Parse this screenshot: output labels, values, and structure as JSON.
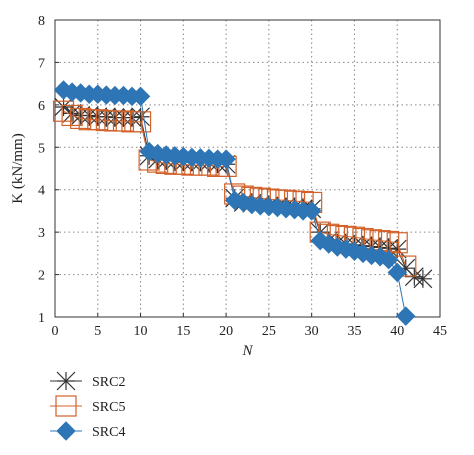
{
  "chart_data": {
    "type": "scatter",
    "xlabel": "N",
    "ylabel": "K (kN/mm)",
    "xlim": [
      0,
      45
    ],
    "ylim": [
      1,
      8
    ],
    "xticks": [
      0,
      5,
      10,
      15,
      20,
      25,
      30,
      35,
      40,
      45
    ],
    "yticks": [
      1,
      2,
      3,
      4,
      5,
      6,
      7,
      8
    ],
    "grid": true,
    "legend_position": "bottom-left",
    "series": [
      {
        "name": "SRC2",
        "marker": "asterisk",
        "color": "#333333",
        "x": [
          1,
          2,
          3,
          4,
          5,
          6,
          7,
          8,
          9,
          10,
          11,
          12,
          13,
          14,
          15,
          16,
          17,
          18,
          19,
          20,
          21,
          22,
          23,
          24,
          25,
          26,
          27,
          28,
          29,
          30,
          31,
          32,
          33,
          34,
          35,
          36,
          37,
          38,
          39,
          40,
          41,
          42,
          43
        ],
        "y": [
          5.95,
          5.8,
          5.75,
          5.75,
          5.72,
          5.72,
          5.7,
          5.7,
          5.7,
          5.72,
          4.8,
          4.72,
          4.7,
          4.68,
          4.65,
          4.65,
          4.65,
          4.65,
          4.62,
          4.6,
          3.8,
          3.7,
          3.68,
          3.65,
          3.62,
          3.6,
          3.6,
          3.58,
          3.55,
          3.55,
          3.0,
          2.8,
          2.75,
          2.72,
          2.7,
          2.68,
          2.66,
          2.64,
          2.62,
          2.6,
          2.15,
          1.95,
          1.9
        ]
      },
      {
        "name": "SRC5",
        "marker": "square",
        "color": "#d2622a",
        "x": [
          1,
          2,
          3,
          4,
          5,
          6,
          7,
          8,
          9,
          10,
          11,
          12,
          13,
          14,
          15,
          16,
          17,
          18,
          19,
          20,
          21,
          22,
          23,
          24,
          25,
          26,
          27,
          28,
          29,
          30,
          31,
          32,
          33,
          34,
          35,
          36,
          37,
          38,
          39,
          40,
          41
        ],
        "y": [
          5.85,
          5.75,
          5.68,
          5.65,
          5.65,
          5.63,
          5.62,
          5.62,
          5.6,
          5.6,
          4.7,
          4.65,
          4.62,
          4.6,
          4.6,
          4.58,
          4.58,
          4.58,
          4.55,
          4.55,
          3.9,
          3.85,
          3.82,
          3.8,
          3.78,
          3.76,
          3.75,
          3.73,
          3.72,
          3.7,
          3.0,
          2.95,
          2.92,
          2.9,
          2.88,
          2.85,
          2.82,
          2.8,
          2.78,
          2.75,
          2.2
        ]
      },
      {
        "name": "SRC4",
        "marker": "diamond",
        "color": "#2e75b6",
        "x": [
          1,
          2,
          3,
          4,
          5,
          6,
          7,
          8,
          9,
          10,
          11,
          12,
          13,
          14,
          15,
          16,
          17,
          18,
          19,
          20,
          21,
          22,
          23,
          24,
          25,
          26,
          27,
          28,
          29,
          30,
          31,
          32,
          33,
          34,
          35,
          36,
          37,
          38,
          39,
          40,
          41
        ],
        "y": [
          6.35,
          6.3,
          6.28,
          6.25,
          6.25,
          6.23,
          6.22,
          6.22,
          6.2,
          6.2,
          4.9,
          4.85,
          4.82,
          4.8,
          4.78,
          4.76,
          4.75,
          4.74,
          4.72,
          4.72,
          3.75,
          3.7,
          3.65,
          3.62,
          3.6,
          3.58,
          3.55,
          3.53,
          3.5,
          3.5,
          2.8,
          2.72,
          2.65,
          2.6,
          2.55,
          2.5,
          2.45,
          2.42,
          2.35,
          2.05,
          1.02
        ]
      }
    ]
  }
}
